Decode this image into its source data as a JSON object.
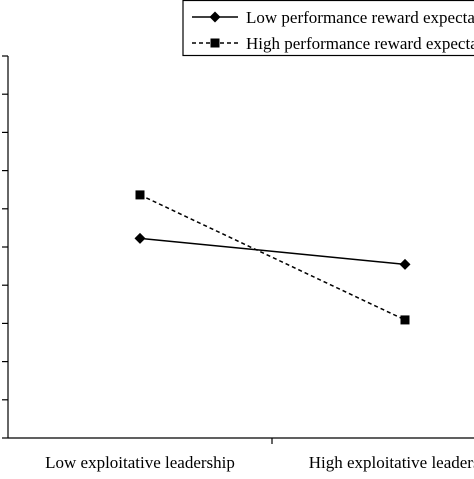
{
  "chart_data": {
    "type": "line",
    "title": "",
    "xlabel": "",
    "ylabel": "",
    "categories": [
      "Low exploitative leadership",
      "High exploitative leadership"
    ],
    "y_tick_count": 11,
    "grid": false,
    "legend_position": "top-right",
    "series": [
      {
        "name": "Low performance reward expectancy",
        "values": [
          5.75,
          5.0
        ],
        "marker": "diamond",
        "line_style": "solid",
        "color": "#000000"
      },
      {
        "name": "High performance reward expectancy",
        "values": [
          7.0,
          3.4
        ],
        "marker": "square",
        "line_style": "dashed",
        "color": "#000000"
      }
    ],
    "ylim": [
      0,
      11
    ]
  }
}
